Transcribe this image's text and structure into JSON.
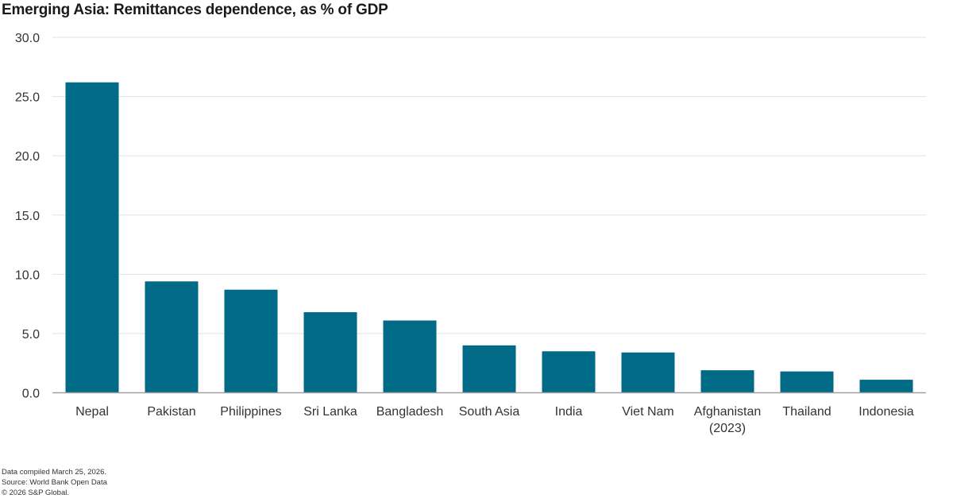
{
  "chart_data": {
    "type": "bar",
    "title": "Emerging Asia: Remittances dependence, as % of GDP",
    "categories": [
      "Nepal",
      "Pakistan",
      "Philippines",
      "Sri Lanka",
      "Bangladesh",
      "South Asia",
      "India",
      "Viet Nam",
      "Afghanistan (2023)",
      "Thailand",
      "Indonesia"
    ],
    "values": [
      26.2,
      9.4,
      8.7,
      6.8,
      6.1,
      4.0,
      3.5,
      3.4,
      1.9,
      1.8,
      1.1
    ],
    "ylim": [
      0,
      30
    ],
    "yticks": [
      "0.0",
      "5.0",
      "10.0",
      "15.0",
      "20.0",
      "25.0",
      "30.0"
    ],
    "xlabel": "",
    "ylabel": "",
    "grid": true,
    "bar_color": "#006A87"
  },
  "footer": {
    "line1": "Data compiled March 25, 2026.",
    "line2": "Source: World Bank Open Data",
    "line3": "© 2026 S&P Global."
  }
}
